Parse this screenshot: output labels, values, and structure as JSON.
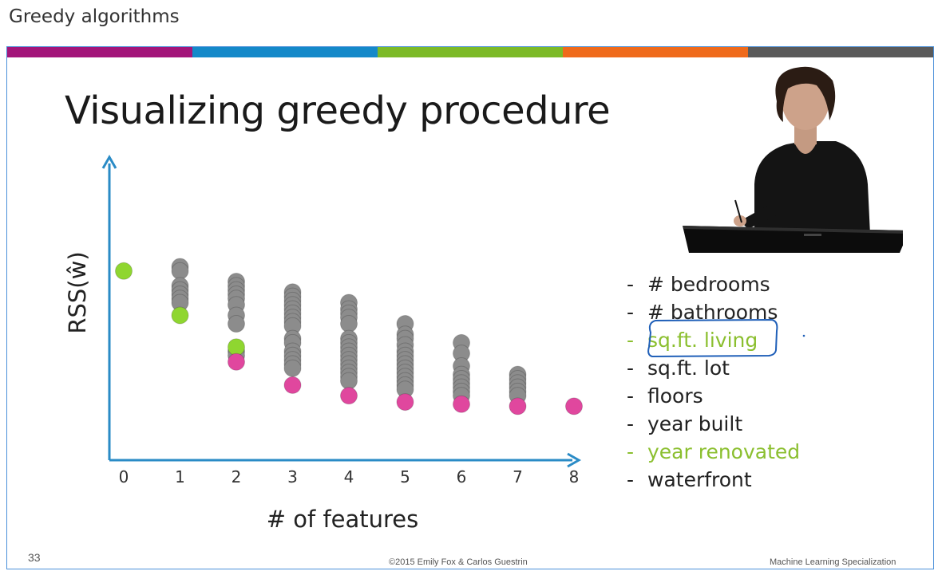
{
  "page_title": "Greedy algorithms",
  "slide": {
    "title": "Visualizing greedy procedure",
    "page_number": "33",
    "copyright": "©2015 Emily Fox & Carlos Guestrin",
    "specialization": "Machine Learning Specialization",
    "color_bar": [
      "#a3157a",
      "#1489c9",
      "#7cba27",
      "#ef6a1b",
      "#5a5a5a"
    ]
  },
  "chart_data": {
    "type": "scatter",
    "xlabel": "# of features",
    "ylabel": "RSS(ŵ)",
    "categories": [
      "0",
      "1",
      "2",
      "3",
      "4",
      "5",
      "6",
      "7",
      "8"
    ],
    "colors": {
      "candidate": "#8c8c8c",
      "greedy_choice": "#8fd630",
      "best": "#e0479e",
      "axis": "#2a8bc6"
    },
    "series": [
      {
        "x": 0,
        "greedy_choice": [
          8.8
        ],
        "candidate": [],
        "best": []
      },
      {
        "x": 1,
        "greedy_choice": [
          6.7
        ],
        "candidate": [
          9.0,
          8.8,
          8.1,
          7.9,
          7.7,
          7.5,
          7.3
        ],
        "best": []
      },
      {
        "x": 2,
        "greedy_choice": [
          5.2
        ],
        "candidate": [
          8.3,
          8.1,
          7.9,
          7.7,
          7.5,
          7.2,
          6.7,
          6.3,
          5.0,
          4.8
        ],
        "best": [
          4.5
        ]
      },
      {
        "x": 3,
        "candidate": [
          7.8,
          7.6,
          7.4,
          7.2,
          7.0,
          6.8,
          6.6,
          6.4,
          6.2,
          5.6,
          5.4,
          5.0,
          4.8,
          4.6,
          4.4,
          4.2
        ],
        "best": [
          3.4
        ]
      },
      {
        "x": 4,
        "candidate": [
          7.3,
          7.0,
          6.8,
          6.6,
          6.3,
          5.6,
          5.4,
          5.2,
          5.0,
          4.8,
          4.6,
          4.4,
          4.2,
          4.0,
          3.8,
          3.6
        ],
        "best": [
          2.9
        ]
      },
      {
        "x": 5,
        "candidate": [
          6.3,
          5.8,
          5.6,
          5.3,
          5.0,
          4.8,
          4.6,
          4.4,
          4.2,
          4.0,
          3.8,
          3.6,
          3.4,
          3.2
        ],
        "best": [
          2.6
        ]
      },
      {
        "x": 6,
        "candidate": [
          5.4,
          4.9,
          4.3,
          3.9,
          3.7,
          3.5,
          3.3,
          3.1,
          2.9
        ],
        "best": [
          2.5
        ]
      },
      {
        "x": 7,
        "candidate": [
          3.9,
          3.7,
          3.5,
          3.3,
          3.1,
          2.9
        ],
        "best": [
          2.4
        ]
      },
      {
        "x": 8,
        "candidate": [],
        "best": [
          2.4
        ]
      }
    ]
  },
  "features": [
    {
      "label": "# bedrooms",
      "color": "#222222"
    },
    {
      "label": "# bathrooms",
      "color": "#222222"
    },
    {
      "label": "sq.ft. living",
      "color": "#8bbf2f"
    },
    {
      "label": "sq.ft. lot",
      "color": "#222222"
    },
    {
      "label": "floors",
      "color": "#222222"
    },
    {
      "label": "year built",
      "color": "#222222"
    },
    {
      "label": "year renovated",
      "color": "#8bbf2f"
    },
    {
      "label": "waterfront",
      "color": "#222222"
    }
  ]
}
